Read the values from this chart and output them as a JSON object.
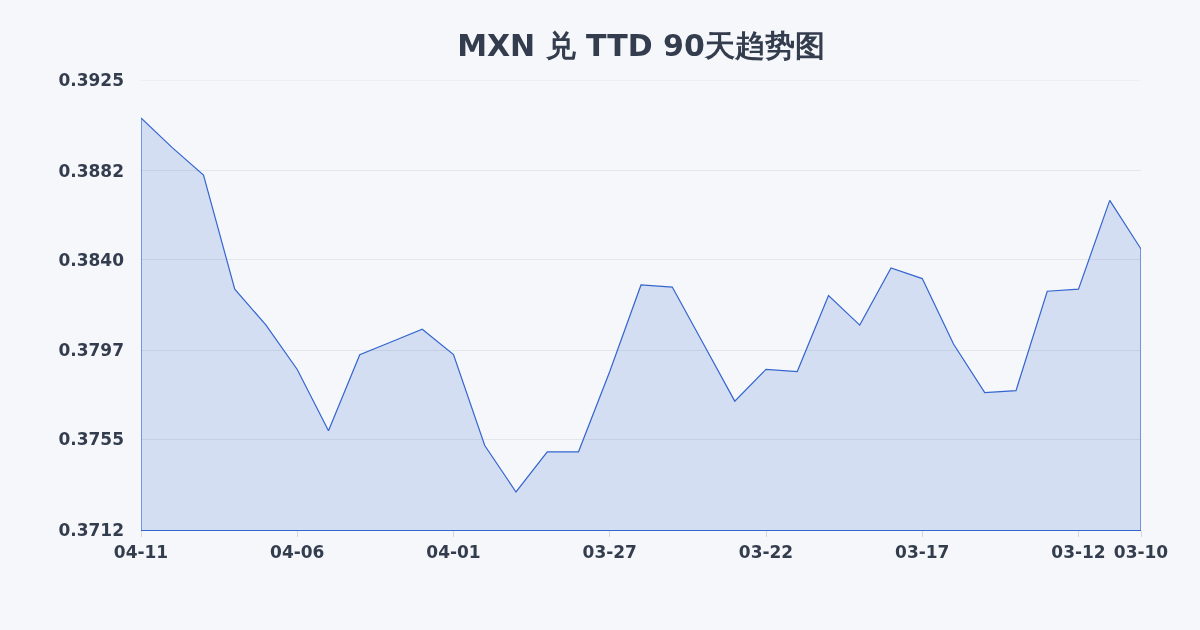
{
  "chart_data": {
    "type": "area",
    "title": "MXN 兑 TTD 90天趋势图",
    "categories": [
      "04-11",
      null,
      null,
      null,
      null,
      "04-06",
      null,
      null,
      null,
      null,
      "04-01",
      null,
      null,
      null,
      null,
      "03-27",
      null,
      null,
      null,
      null,
      "03-22",
      null,
      null,
      null,
      null,
      "03-17",
      null,
      null,
      null,
      null,
      "03-12",
      null,
      "03-10"
    ],
    "values": [
      0.3907,
      0.3893,
      0.388,
      0.3826,
      0.3809,
      0.3788,
      0.3759,
      0.3795,
      0.3801,
      0.3807,
      0.3795,
      0.3752,
      0.373,
      0.3749,
      0.3749,
      0.3787,
      0.3828,
      0.3827,
      0.38,
      0.3773,
      0.3788,
      0.3787,
      0.3823,
      0.3809,
      0.3836,
      0.3831,
      0.38,
      0.3777,
      0.3778,
      0.3825,
      0.3826,
      0.3868,
      0.3845
    ],
    "color": "#3565cf",
    "ylim": [
      0.3712,
      0.3925
    ],
    "yticks": [
      0.3712,
      0.3755,
      0.3797,
      {
        "value": 0.384,
        "label": "0.3840"
      },
      0.3882,
      0.3925
    ],
    "grid": "y"
  }
}
